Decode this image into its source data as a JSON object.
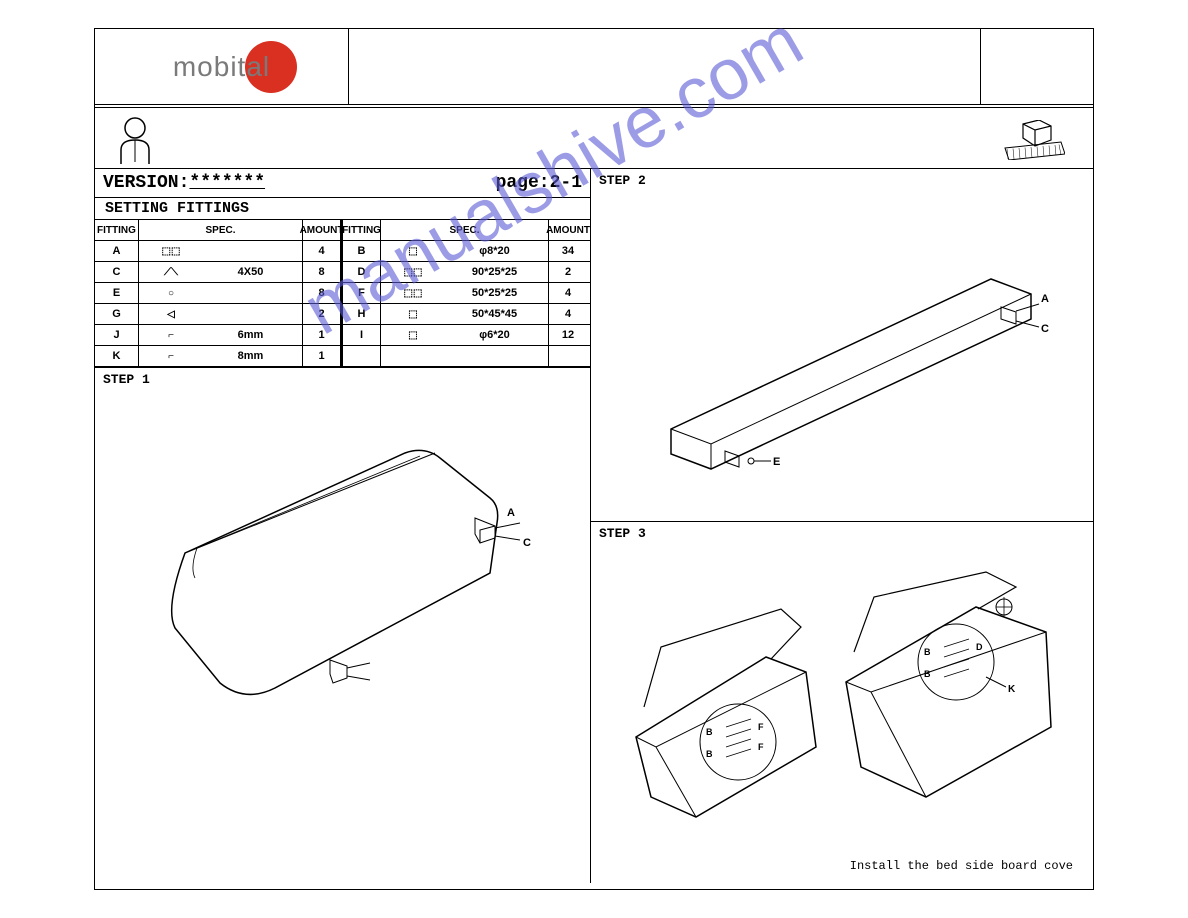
{
  "logo": {
    "text": "mobital",
    "circle_color": "#d93022",
    "text_color": "#7a7a7a"
  },
  "version": {
    "label": "VERSION:",
    "value": "*******",
    "page_label": "page:2-1"
  },
  "fittings": {
    "header": "SETTING FITTINGS",
    "col_headers": {
      "fitting": "FITTING",
      "spec": "SPEC.",
      "amount": "AMOUNT"
    },
    "left_rows": [
      {
        "fitting": "A",
        "icon": "⬚⬚",
        "spec": "",
        "amount": "4"
      },
      {
        "fitting": "C",
        "icon": "⟋⟍",
        "spec": "4X50",
        "amount": "8"
      },
      {
        "fitting": "E",
        "icon": "○",
        "spec": "",
        "amount": "8"
      },
      {
        "fitting": "G",
        "icon": "◁",
        "spec": "",
        "amount": "2"
      },
      {
        "fitting": "J",
        "icon": "⌐",
        "spec": "6mm",
        "amount": "1"
      },
      {
        "fitting": "K",
        "icon": "⌐",
        "spec": "8mm",
        "amount": "1"
      }
    ],
    "right_rows": [
      {
        "fitting": "B",
        "icon": "⬚",
        "spec": "φ8*20",
        "amount": "34"
      },
      {
        "fitting": "D",
        "icon": "⬚⬚",
        "spec": "90*25*25",
        "amount": "2"
      },
      {
        "fitting": "F",
        "icon": "⬚⬚",
        "spec": "50*25*25",
        "amount": "4"
      },
      {
        "fitting": "H",
        "icon": "⬚",
        "spec": "50*45*45",
        "amount": "4"
      },
      {
        "fitting": "I",
        "icon": "⬚",
        "spec": "φ6*20",
        "amount": "12"
      },
      {
        "fitting": "",
        "icon": "",
        "spec": "",
        "amount": ""
      }
    ]
  },
  "steps": {
    "s1": {
      "label": "STEP 1",
      "callouts": [
        "A",
        "C"
      ]
    },
    "s2": {
      "label": "STEP 2",
      "callouts": [
        "A",
        "C",
        "E"
      ]
    },
    "s3": {
      "label": "STEP 3",
      "caption": "Install the bed side board cove",
      "callouts": [
        "B",
        "F",
        "D",
        "K"
      ]
    }
  },
  "watermark": "manualshive.com",
  "colors": {
    "watermark": "#5b5bd6",
    "line": "#000000",
    "bg": "#ffffff"
  }
}
